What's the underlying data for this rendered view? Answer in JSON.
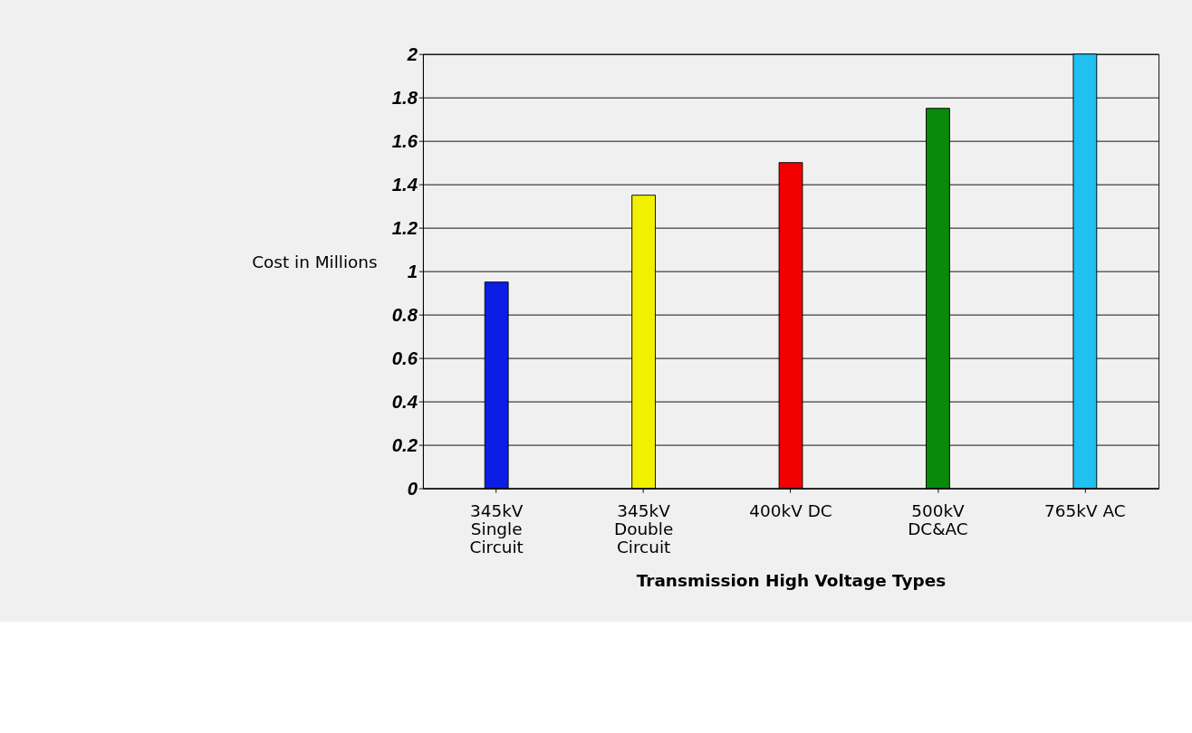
{
  "chart_data": {
    "type": "bar",
    "categories": [
      "345kV\nSingle\nCircuit",
      "345kV\nDouble\nCircuit",
      "400kV DC",
      "500kV\nDC&AC",
      "765kV AC"
    ],
    "colors": [
      "#0a1ee6",
      "#f0f000",
      "#f00000",
      "#0a8a0a",
      "#20c0f0"
    ],
    "values": [
      0.95,
      1.35,
      1.5,
      1.75,
      2.0
    ],
    "ylim": [
      0,
      2
    ],
    "yticks": [
      0,
      0.2,
      0.4,
      0.6,
      0.8,
      1,
      1.2,
      1.4,
      1.6,
      1.8,
      2
    ],
    "ylabel": "Cost in Millions",
    "xlabel": "Transmission High Voltage Types",
    "grid": "y"
  }
}
